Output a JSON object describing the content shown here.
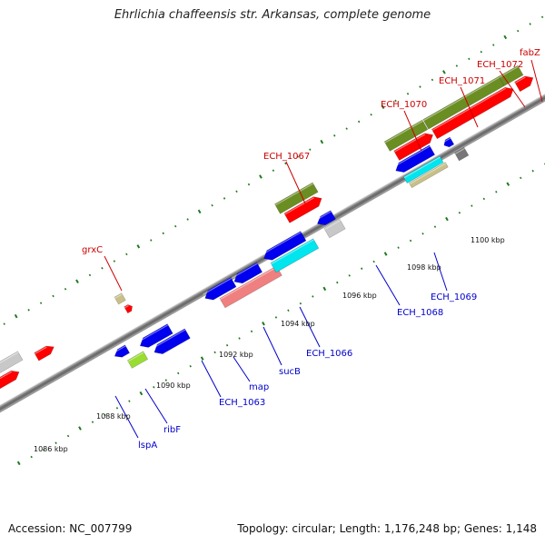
{
  "title": "Ehrlichia chaffeensis str. Arkansas, complete genome",
  "accession": "Accession: NC_007799",
  "summary": "Topology: circular; Length: 1,176,248 bp; Genes: 1,148",
  "colors": {
    "backbone": "#888888",
    "tick_major": "#1e7a1e",
    "forward_label": "#cc0000",
    "reverse_label": "#0000cc",
    "olive": "#6b8e23",
    "red": "#ff0000",
    "blue": "#0000ee",
    "cyan": "#00e5ee",
    "pink": "#f08080",
    "gray": "#c8c8c8",
    "tan": "#c8c088",
    "lime": "#99dd33",
    "darkgray": "#777777"
  },
  "kbp_ticks": [
    "1086 kbp",
    "1088 kbp",
    "1090 kbp",
    "1092 kbp",
    "1094 kbp",
    "1096 kbp",
    "1098 kbp",
    "1100 kbp"
  ],
  "forward_labels": [
    "grxC",
    "ECH_1067",
    "ECH_1070",
    "ECH_1071",
    "ECH_1072",
    "fabZ"
  ],
  "reverse_labels": [
    "lspA",
    "ribF",
    "ECH_1063",
    "map",
    "sucB",
    "ECH_1066",
    "ECH_1068",
    "ECH_1069"
  ]
}
